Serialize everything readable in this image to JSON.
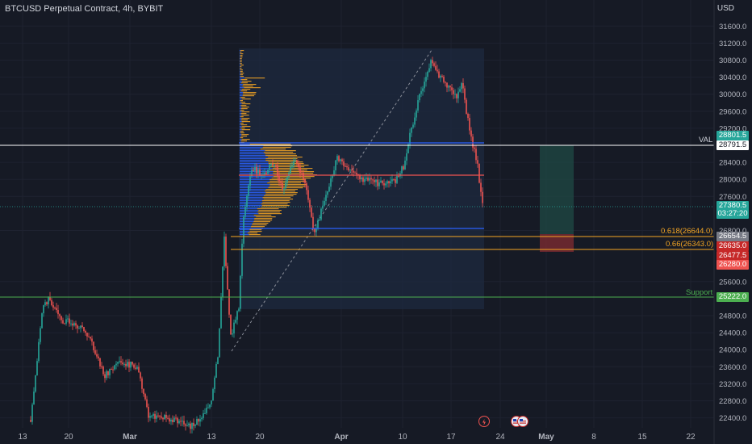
{
  "header": {
    "title": "BTCUSD Perpetual Contract, 4h, BYBIT",
    "currency": "USD"
  },
  "colors": {
    "background": "#161a25",
    "up": "#26a69a",
    "down": "#ef5350",
    "profile_up": "#2962ff",
    "profile_down": "#f5a623",
    "fib": "#f5a623",
    "support": "#4caf50",
    "val_line": "#ffffff"
  },
  "y_axis": {
    "ticks": [
      "31600.0",
      "31200.0",
      "30800.0",
      "30400.0",
      "30000.0",
      "29600.0",
      "29200.0",
      "28400.0",
      "28000.0",
      "27600.0",
      "26800.0",
      "25600.0",
      "24800.0",
      "24400.0",
      "24000.0",
      "23600.0",
      "23200.0",
      "22800.0",
      "22400.0"
    ]
  },
  "x_axis": {
    "ticks": [
      "13",
      "20",
      "Mar",
      "13",
      "20",
      "Apr",
      "10",
      "17",
      "24",
      "May",
      "8",
      "15",
      "22"
    ]
  },
  "price_tags": [
    {
      "id": "val-level",
      "text": "28801.5",
      "color": "#26a69a"
    },
    {
      "id": "val-price",
      "text": "28791.5",
      "color": "#ffffff"
    },
    {
      "id": "current-price",
      "text": "27380.5",
      "color": "#26a69a"
    },
    {
      "id": "countdown",
      "text": "03:27:20",
      "color": "#26a69a"
    },
    {
      "id": "fib-618-price",
      "text": "26654.5",
      "color": "#787b86"
    },
    {
      "id": "fib-66-price",
      "text": "26635.0",
      "color": "#c62828"
    },
    {
      "id": "stop-price-1",
      "text": "26477.5",
      "color": "#c62828"
    },
    {
      "id": "stop-price-2",
      "text": "26280.0",
      "color": "#ef5350"
    },
    {
      "id": "support-price",
      "text": "25222.0",
      "color": "#4caf50"
    }
  ],
  "line_labels": {
    "val": "VAL",
    "fib_618": "0.618(26644.0)",
    "fib_66": "0.66(26343.0)",
    "support": "Support"
  }
}
